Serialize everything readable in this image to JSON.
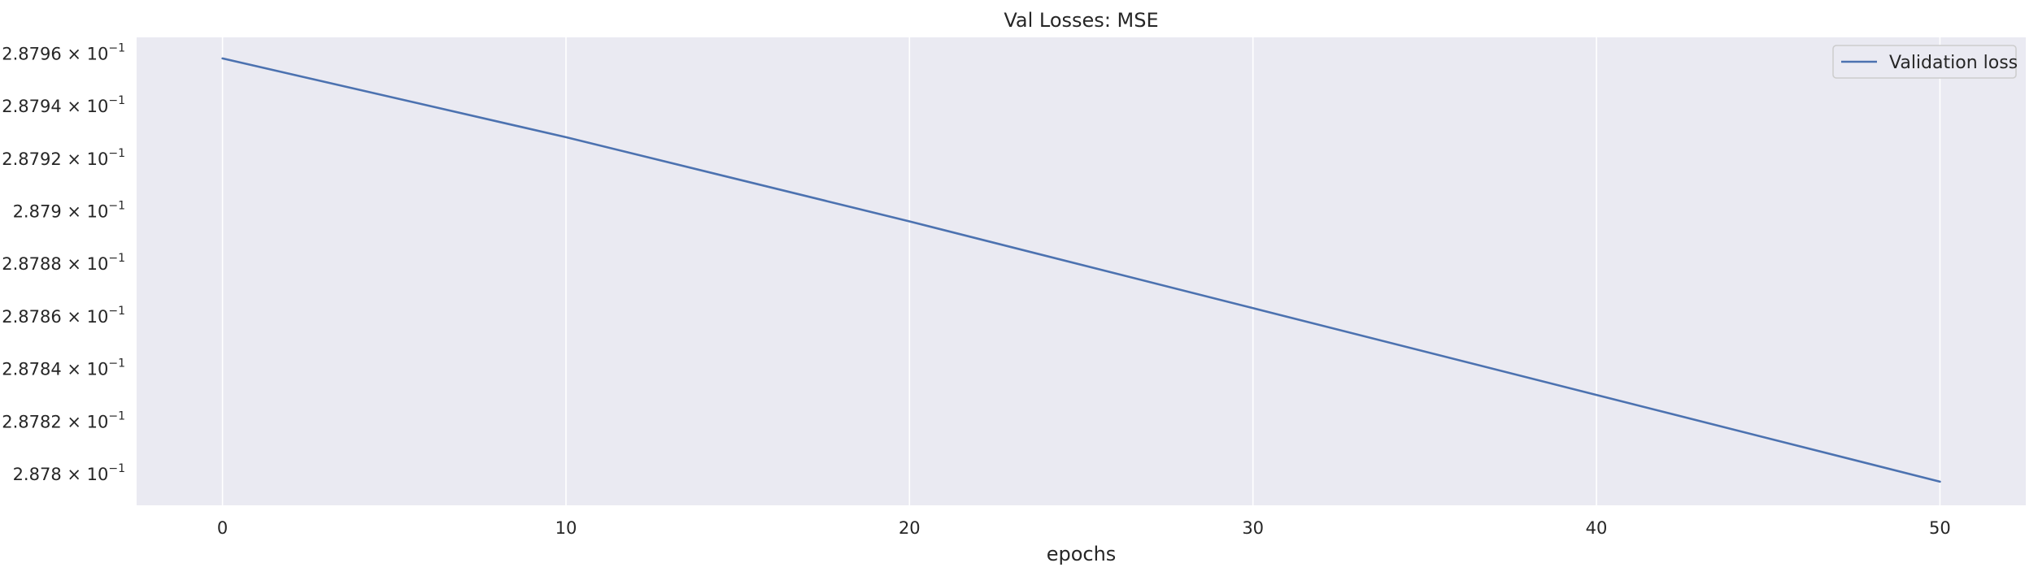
{
  "chart_data": {
    "type": "line",
    "title": "Val Losses:  MSE",
    "xlabel": "epochs",
    "ylabel": "",
    "x_ticks": [
      0,
      10,
      20,
      30,
      40,
      50
    ],
    "y_scale": "log",
    "y_ticks": [
      {
        "value": 0.2878,
        "mantissa": "2.878",
        "exponent": "−1"
      },
      {
        "value": 0.28782,
        "mantissa": "2.8782",
        "exponent": "−1"
      },
      {
        "value": 0.28784,
        "mantissa": "2.8784",
        "exponent": "−1"
      },
      {
        "value": 0.28786,
        "mantissa": "2.8786",
        "exponent": "−1"
      },
      {
        "value": 0.28788,
        "mantissa": "2.8788",
        "exponent": "−1"
      },
      {
        "value": 0.2879,
        "mantissa": "2.879",
        "exponent": "−1"
      },
      {
        "value": 0.28792,
        "mantissa": "2.8792",
        "exponent": "−1"
      },
      {
        "value": 0.28794,
        "mantissa": "2.8794",
        "exponent": "−1"
      },
      {
        "value": 0.28796,
        "mantissa": "2.8796",
        "exponent": "−1"
      }
    ],
    "xlim": [
      -2.5,
      52.5
    ],
    "ylim": [
      0.287788,
      0.287966
    ],
    "grid": "vertical",
    "legend_position": "top-right",
    "background_color": "#eaeaf2",
    "series": [
      {
        "name": "Validation loss",
        "color": "#4c72b0",
        "x": [
          0,
          10,
          20,
          30,
          40,
          50
        ],
        "y": [
          0.287958,
          0.287928,
          0.287896,
          0.287863,
          0.28783,
          0.287797
        ]
      }
    ]
  }
}
